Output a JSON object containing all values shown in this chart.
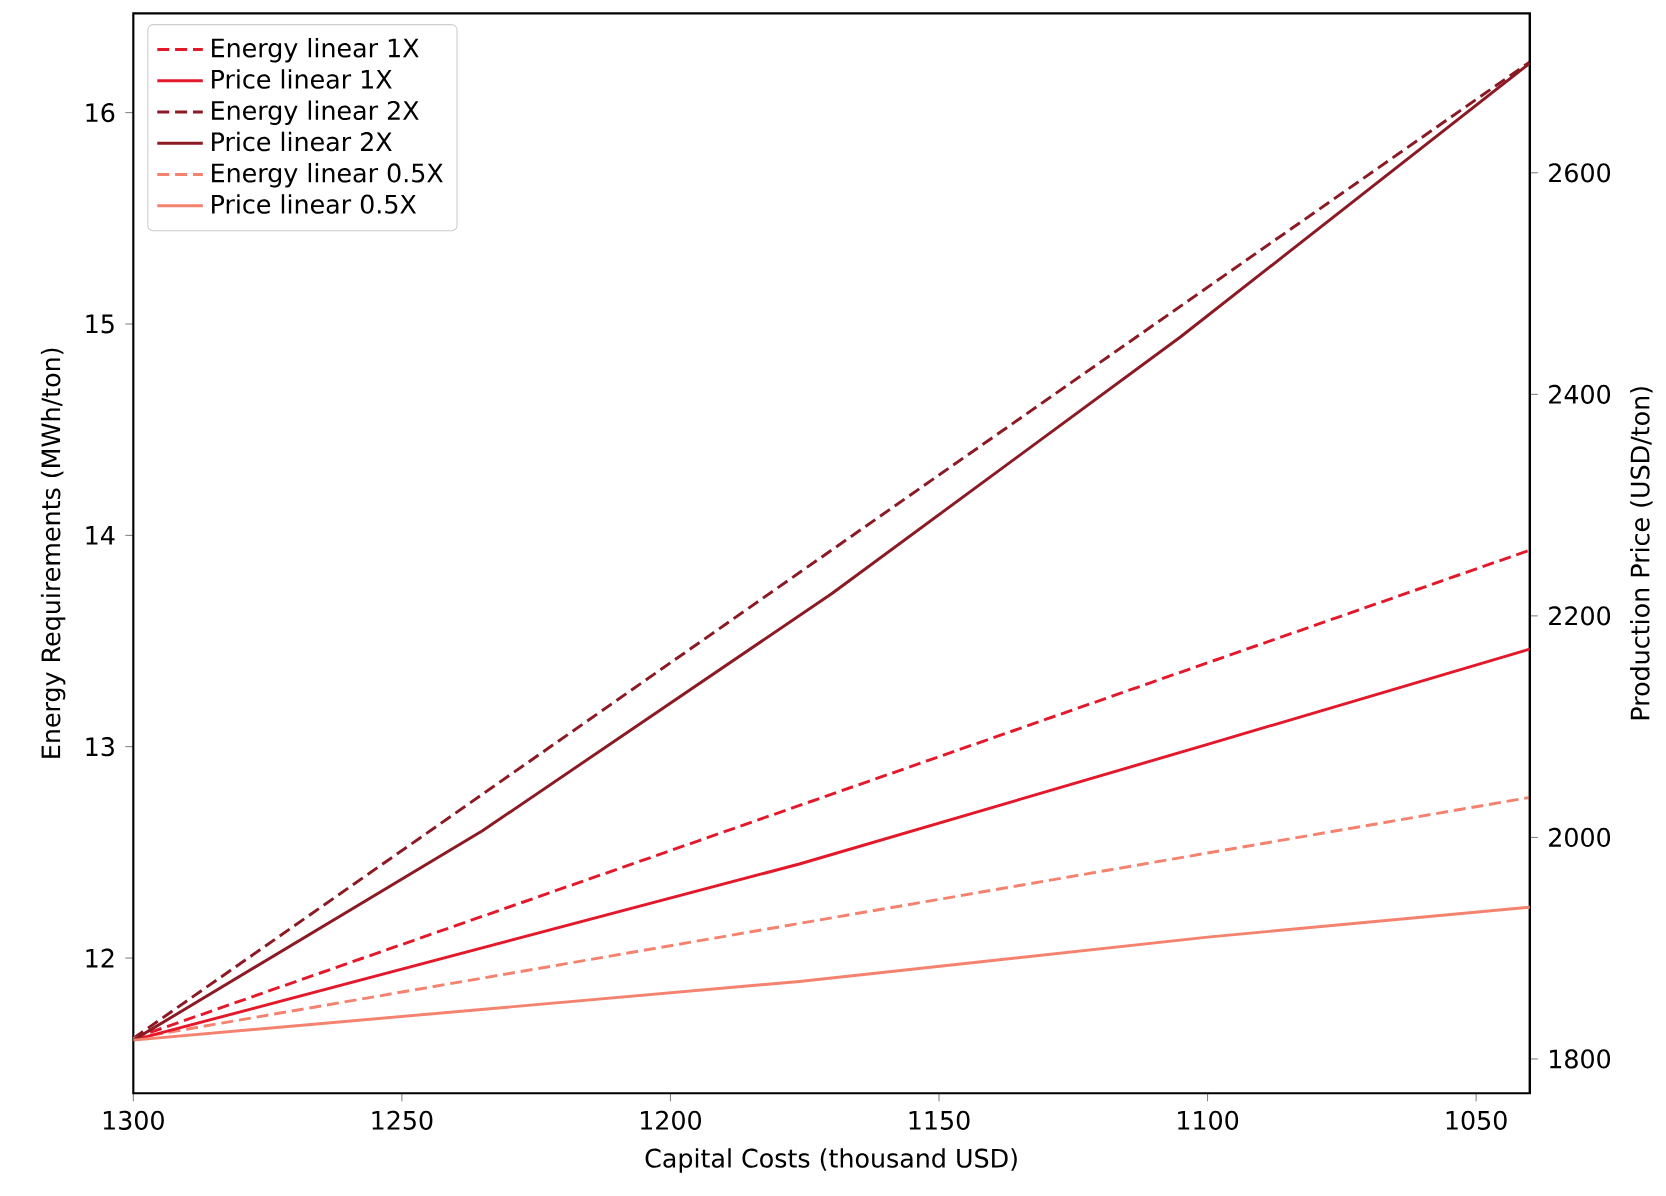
{
  "chart_data": {
    "type": "line",
    "xlabel": "Capital Costs (thousand USD)",
    "ylabel": "Energy Requirements (MWh/ton)",
    "y2label": "Production Price (USD/ton)",
    "xlim": [
      1300,
      1040
    ],
    "xticks": [
      1300,
      1250,
      1200,
      1150,
      1100,
      1050
    ],
    "ylim": [
      11.36,
      16.47
    ],
    "yticks": [
      12,
      13,
      14,
      15,
      16
    ],
    "y2lim": [
      1769,
      2744
    ],
    "y2ticks": [
      1800,
      2000,
      2200,
      2400,
      2600
    ],
    "legend": "top left",
    "grid": false,
    "marker": "none",
    "series": [
      {
        "name": "Energy linear 1X",
        "color": "#e3192b",
        "line_style": "dashed",
        "x": [
          1300,
          1040
        ],
        "values": [
          11.62,
          13.93
        ]
      },
      {
        "name": "Price linear 1X",
        "color": "#e3192b",
        "line_style": "solid",
        "axis": "y2",
        "x": [
          1300,
          1176,
          1100,
          1040
        ],
        "values": [
          1817,
          1976,
          2084,
          2170
        ]
      },
      {
        "name": "Energy linear 2X",
        "color": "#8b1a24",
        "line_style": "dashed",
        "x": [
          1300,
          1040
        ],
        "values": [
          11.62,
          16.24
        ]
      },
      {
        "name": "Price linear 2X",
        "color": "#8b1a24",
        "line_style": "solid",
        "axis": "y2",
        "x": [
          1300,
          1235,
          1170,
          1105,
          1040
        ],
        "values": [
          1817,
          2006,
          2220,
          2452,
          2699
        ]
      },
      {
        "name": "Energy linear 0.5X",
        "color": "#f4826e",
        "line_style": "dashed",
        "x": [
          1300,
          1040
        ],
        "values": [
          11.62,
          12.76
        ]
      },
      {
        "name": "Price linear 0.5X",
        "color": "#f4826e",
        "line_style": "solid",
        "axis": "y2",
        "x": [
          1300,
          1176,
          1100,
          1040
        ],
        "values": [
          1817,
          1870,
          1910,
          1937
        ]
      }
    ]
  }
}
